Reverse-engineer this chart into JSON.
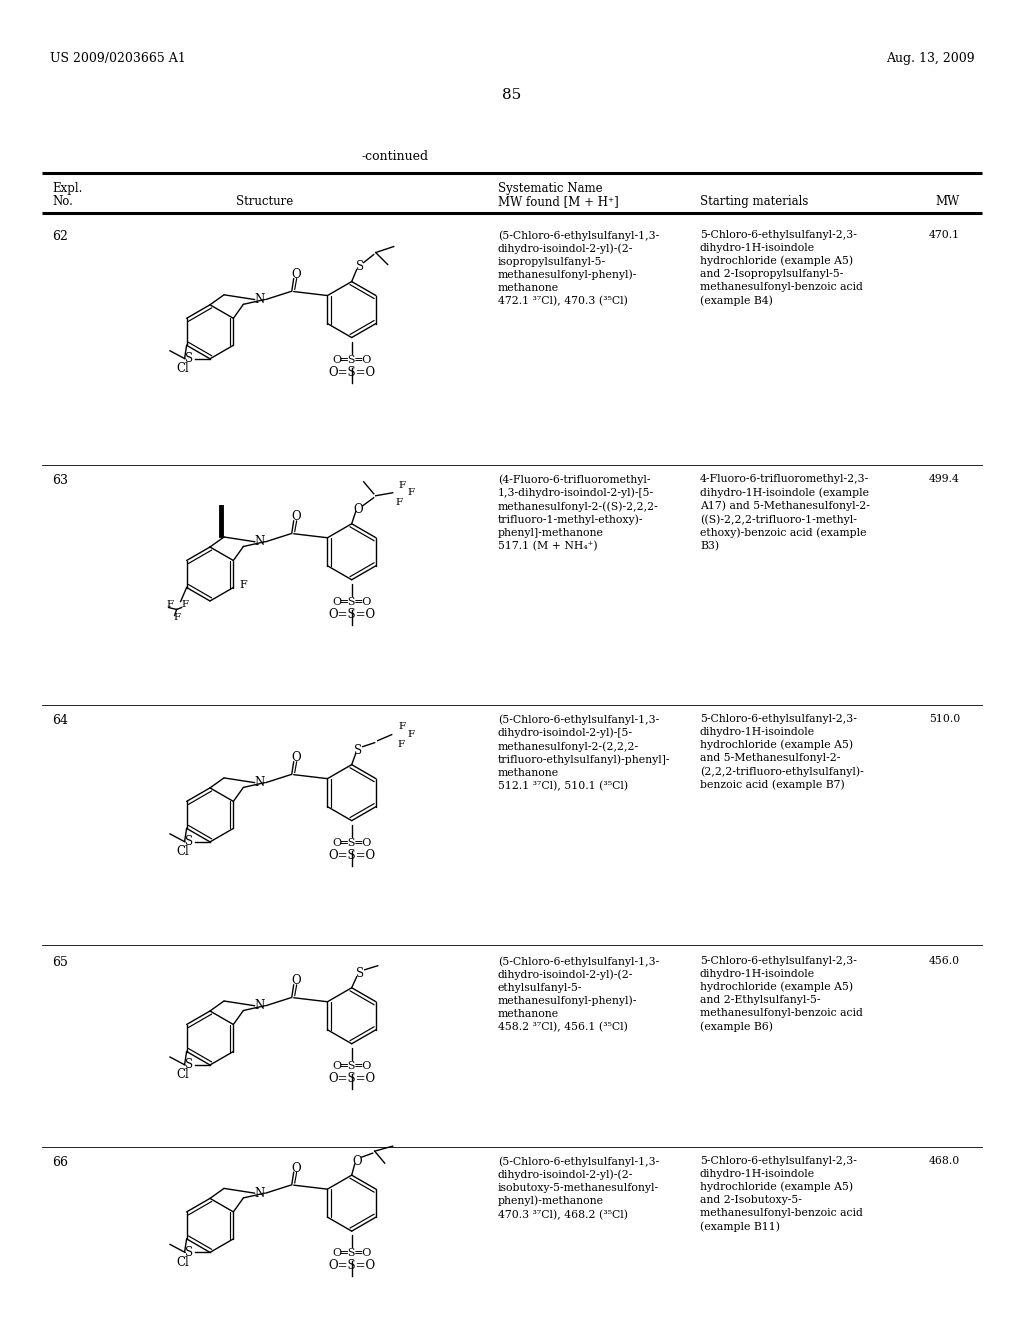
{
  "bg": "#ffffff",
  "header_left": "US 2009/0203665 A1",
  "header_right": "Aug. 13, 2009",
  "page_num": "85",
  "table_title": "-continued",
  "col_expl": "Expl.\nNo.",
  "col_struct": "Structure",
  "col_sysname": "Systematic Name\nMW found [M + H⁺]",
  "col_starting": "Starting materials",
  "col_mw": "MW",
  "rows": [
    {
      "no": "62",
      "sysname": "(5-Chloro-6-ethylsulfanyl-1,3-\ndihydro-isoindol-2-yl)-(2-\nisopropylsulfanyl-5-\nmethanesulfonyl-phenyl)-\nmethanone\n472.1 ³⁷Cl), 470.3 (³⁵Cl)",
      "starting": "5-Chloro-6-ethylsulfanyl-2,3-\ndihydro-1H-isoindole\nhydrochloride (example A5)\nand 2-Isopropylsulfanyl-5-\nmethanesulfonyl-benzoic acid\n(example B4)",
      "mw": "470.1"
    },
    {
      "no": "63",
      "sysname": "(4-Fluoro-6-trifluoromethyl-\n1,3-dihydro-isoindol-2-yl)-[5-\nmethanesulfonyl-2-((S)-2,2,2-\ntrifluoro-1-methyl-ethoxy)-\nphenyl]-methanone\n517.1 (M + NH₄⁺)",
      "starting": "4-Fluoro-6-trifluoromethyl-2,3-\ndihydro-1H-isoindole (example\nA17) and 5-Methanesulfonyl-2-\n((S)-2,2,2-trifluoro-1-methyl-\nethoxy)-benzoic acid (example\nB3)",
      "mw": "499.4"
    },
    {
      "no": "64",
      "sysname": "(5-Chloro-6-ethylsulfanyl-1,3-\ndihydro-isoindol-2-yl)-[5-\nmethanesulfonyl-2-(2,2,2-\ntrifluoro-ethylsulfanyl)-phenyl]-\nmethanone\n512.1 ³⁷Cl), 510.1 (³⁵Cl)",
      "starting": "5-Chloro-6-ethylsulfanyl-2,3-\ndihydro-1H-isoindole\nhydrochloride (example A5)\nand 5-Methanesulfonyl-2-\n(2,2,2-trifluoro-ethylsulfanyl)-\nbenzoic acid (example B7)",
      "mw": "510.0"
    },
    {
      "no": "65",
      "sysname": "(5-Chloro-6-ethylsulfanyl-1,3-\ndihydro-isoindol-2-yl)-(2-\nethylsulfanyl-5-\nmethanesulfonyl-phenyl)-\nmethanone\n458.2 ³⁷Cl), 456.1 (³⁵Cl)",
      "starting": "5-Chloro-6-ethylsulfanyl-2,3-\ndihydro-1H-isoindole\nhydrochloride (example A5)\nand 2-Ethylsulfanyl-5-\nmethanesulfonyl-benzoic acid\n(example B6)",
      "mw": "456.0"
    },
    {
      "no": "66",
      "sysname": "(5-Chloro-6-ethylsulfanyl-1,3-\ndihydro-isoindol-2-yl)-(2-\nisobutoxy-5-methanesulfonyl-\nphenyl)-methanone\n470.3 ³⁷Cl), 468.2 (³⁵Cl)",
      "starting": "5-Chloro-6-ethylsulfanyl-2,3-\ndihydro-1H-isoindole\nhydrochloride (example A5)\nand 2-Isobutoxy-5-\nmethanesulfonyl-benzoic acid\n(example B11)",
      "mw": "468.0"
    }
  ]
}
